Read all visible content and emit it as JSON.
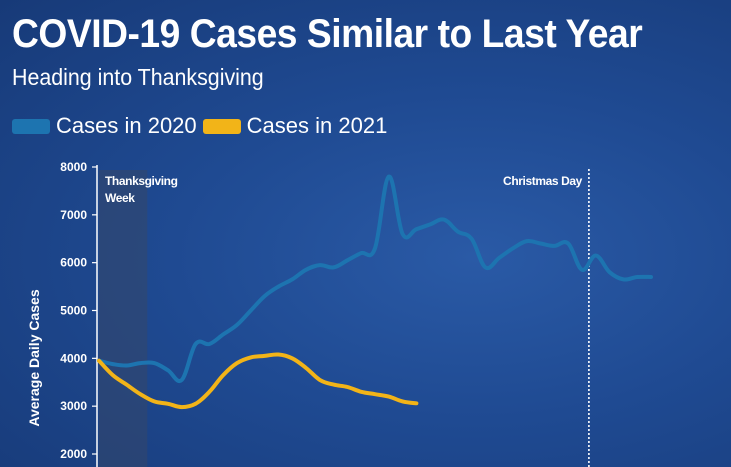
{
  "chart_data": {
    "type": "line",
    "title": "COVID-19 Cases Similar to Last Year",
    "subtitle": "Heading into Thanksgiving",
    "ylabel": "Average Daily Cases",
    "xlabel": "",
    "ylim": [
      2000,
      8000
    ],
    "yticks": [
      "2000",
      "3000",
      "4000",
      "5000",
      "6000",
      "7000",
      "8000"
    ],
    "grid": false,
    "legend_position": "top-left",
    "annotations": {
      "thanksgiving": [
        "Thanksgiving",
        "Week"
      ],
      "christmas": "Christmas Day"
    },
    "annotation_days": {
      "thanksgiving_start": 0,
      "thanksgiving_end": 7,
      "christmas": 71
    },
    "x": [
      0,
      2,
      4,
      6,
      8,
      10,
      12,
      14,
      16,
      18,
      20,
      22,
      24,
      26,
      28,
      30,
      32,
      34,
      36,
      38,
      40,
      42,
      44,
      46,
      48,
      50,
      52,
      54,
      56,
      58,
      60,
      62,
      64,
      66,
      68,
      70,
      72,
      74,
      76,
      78,
      80,
      82,
      84,
      86,
      88
    ],
    "series": [
      {
        "name": "Cases in 2020",
        "color": "#1d74b0",
        "values": [
          3950,
          3880,
          3850,
          3900,
          3900,
          3750,
          3550,
          4300,
          4300,
          4500,
          4700,
          5000,
          5300,
          5500,
          5650,
          5850,
          5950,
          5900,
          6050,
          6200,
          6300,
          7800,
          6600,
          6700,
          6800,
          6900,
          6650,
          6500,
          5900,
          6100,
          6300,
          6450,
          6400,
          6350,
          6400,
          5850,
          6150,
          5800,
          5650,
          5700,
          5700,
          null,
          null,
          null,
          null
        ]
      },
      {
        "name": "Cases in 2021",
        "color": "#f2b418",
        "values": [
          3950,
          3650,
          3450,
          3250,
          3100,
          3050,
          2980,
          3050,
          3300,
          3650,
          3900,
          4020,
          4050,
          4080,
          4000,
          3800,
          3550,
          3450,
          3400,
          3300,
          3250,
          3200,
          3100,
          3060,
          null,
          null,
          null,
          null,
          null,
          null,
          null,
          null,
          null,
          null,
          null,
          null,
          null,
          null,
          null,
          null,
          null,
          null,
          null,
          null,
          null
        ]
      }
    ]
  },
  "colors": {
    "series_2020": "#1d74b0",
    "series_2021": "#f2b418"
  }
}
